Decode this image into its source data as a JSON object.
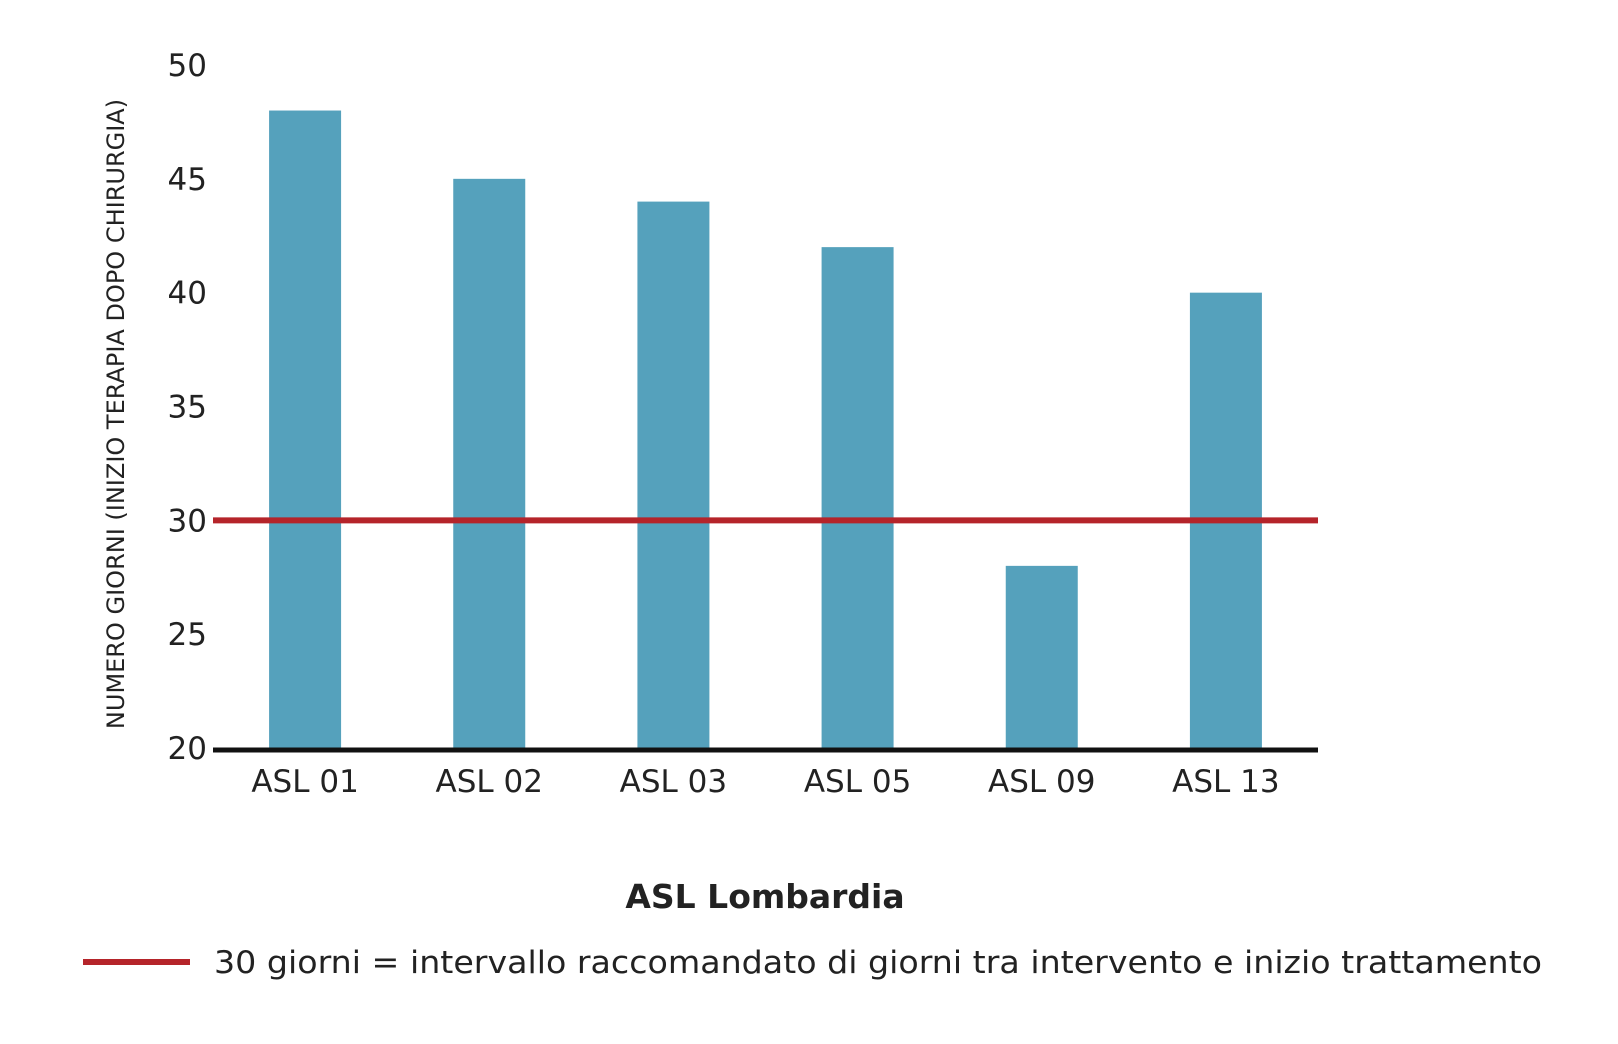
{
  "chart_data": {
    "type": "bar",
    "categories": [
      "ASL 01",
      "ASL 02",
      "ASL 03",
      "ASL 05",
      "ASL 09",
      "ASL 13"
    ],
    "values": [
      48,
      45,
      44,
      42,
      28,
      40
    ],
    "xlabel": "ASL Lombardia",
    "ylabel": "NUMERO GIORNI (INIZIO TERAPIA DOPO CHIRURGIA)",
    "ylim": [
      20,
      50
    ],
    "yticks": [
      20,
      25,
      30,
      35,
      40,
      45,
      50
    ],
    "grid": false,
    "reference_line": {
      "value": 30,
      "label": "30 giorni = intervallo raccomandato di giorni tra intervento e inizio trattamento"
    },
    "legend_position": "bottom",
    "colors": {
      "bar": "#55a1bc",
      "reference_line": "#b5242a",
      "axis": "#111111",
      "text": "#222222"
    }
  }
}
